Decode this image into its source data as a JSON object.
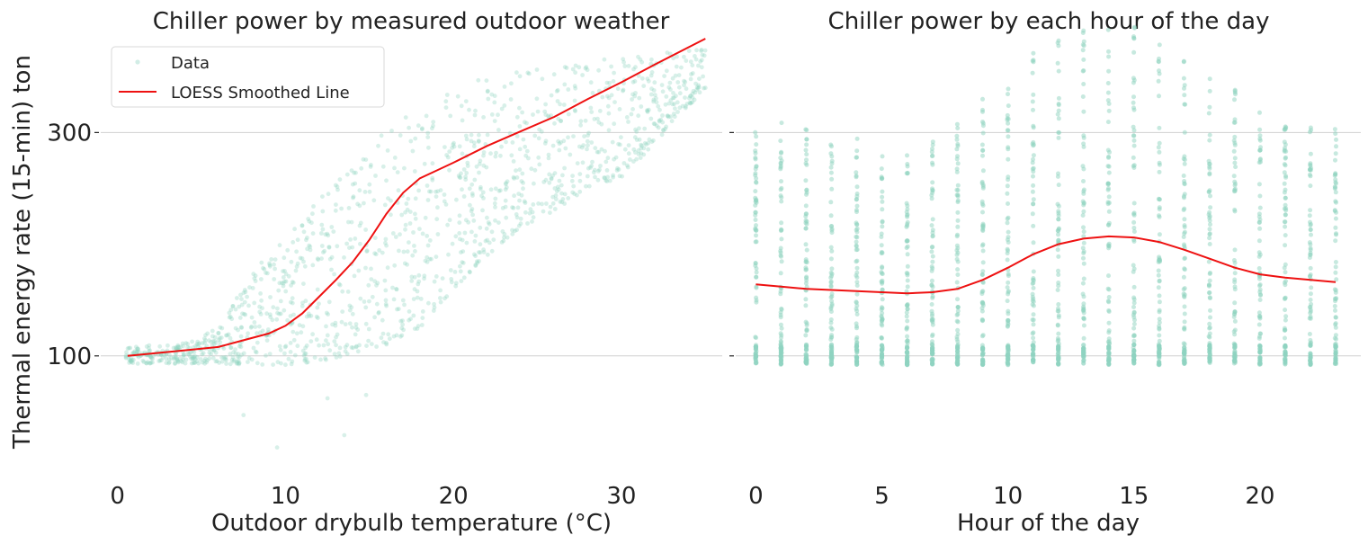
{
  "chart_data": [
    {
      "type": "scatter",
      "title": "Chiller power by measured outdoor weather",
      "xlabel": "Outdoor drybulb temperature (°C)",
      "ylabel": "Thermal energy rate (15-min) ton",
      "xlim": [
        -1,
        36
      ],
      "ylim": [
        0,
        380
      ],
      "xticks": [
        0,
        10,
        20,
        30
      ],
      "yticks": [
        100,
        300
      ],
      "grid": "horizontal",
      "legend": {
        "placement": "top-left",
        "entries": [
          "Data",
          "LOESS Smoothed Line"
        ]
      },
      "series": [
        {
          "name": "Data",
          "kind": "scatter",
          "color": "#8fd3c0",
          "note": "dense cloud of thousands of points; band lower/upper bounds by temperature",
          "band_x": [
            0.5,
            4,
            6,
            8,
            10,
            12,
            14,
            16,
            18,
            20,
            22,
            24,
            26,
            28,
            30,
            32,
            35
          ],
          "band_low": [
            93,
            93,
            93,
            92,
            92,
            95,
            102,
            110,
            125,
            160,
            190,
            215,
            230,
            250,
            260,
            290,
            340
          ],
          "band_high": [
            108,
            112,
            125,
            175,
            205,
            240,
            270,
            305,
            325,
            340,
            350,
            355,
            358,
            365,
            368,
            372,
            375
          ]
        },
        {
          "name": "LOESS Smoothed Line",
          "kind": "line",
          "color": "#ee1111",
          "x": [
            0.6,
            2,
            4,
            6,
            7,
            8,
            9,
            10,
            11,
            12,
            13,
            14,
            15,
            16,
            17,
            18,
            19,
            20,
            22,
            24,
            26,
            28,
            30,
            32,
            35
          ],
          "y": [
            100,
            102,
            105,
            108,
            112,
            116,
            120,
            127,
            138,
            153,
            168,
            184,
            204,
            227,
            246,
            259,
            266,
            273,
            288,
            301,
            314,
            330,
            345,
            361,
            384
          ]
        }
      ]
    },
    {
      "type": "scatter",
      "title": "Chiller power by each hour of the day",
      "xlabel": "Hour of the day",
      "ylabel": "",
      "xlim": [
        -0.8,
        24
      ],
      "ylim": [
        0,
        380
      ],
      "xticks": [
        0,
        5,
        10,
        15,
        20
      ],
      "yticks": [
        100,
        300
      ],
      "grid": "horizontal",
      "series": [
        {
          "name": "Data",
          "kind": "scatter",
          "color": "#8fd3c0",
          "hours": [
            0,
            1,
            2,
            3,
            4,
            5,
            6,
            7,
            8,
            9,
            10,
            11,
            12,
            13,
            14,
            15,
            16,
            17,
            18,
            19,
            20,
            21,
            22,
            23
          ],
          "min": [
            92,
            92,
            92,
            92,
            92,
            92,
            92,
            92,
            92,
            92,
            92,
            92,
            92,
            92,
            92,
            92,
            92,
            92,
            92,
            92,
            92,
            92,
            92,
            92
          ],
          "max": [
            318,
            310,
            305,
            300,
            295,
            292,
            290,
            295,
            310,
            330,
            355,
            372,
            385,
            392,
            398,
            395,
            385,
            370,
            355,
            340,
            328,
            320,
            310,
            305
          ]
        },
        {
          "name": "LOESS Smoothed Line",
          "kind": "line",
          "color": "#ee1111",
          "x": [
            0,
            1,
            2,
            3,
            4,
            5,
            6,
            7,
            8,
            9,
            10,
            11,
            12,
            13,
            14,
            15,
            16,
            17,
            18,
            19,
            20,
            21,
            22,
            23
          ],
          "y": [
            164,
            162,
            160,
            159,
            158,
            157,
            156,
            157,
            160,
            168,
            179,
            191,
            200,
            205,
            207,
            206,
            202,
            195,
            187,
            179,
            173,
            170,
            168,
            166
          ]
        }
      ]
    }
  ]
}
